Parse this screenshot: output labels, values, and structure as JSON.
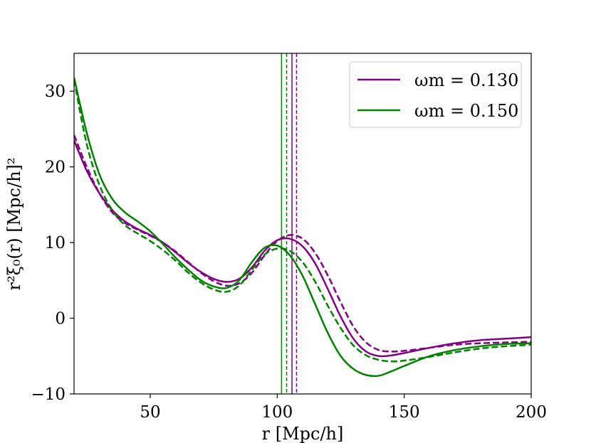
{
  "chart_data": {
    "type": "line",
    "title": "",
    "xlabel": "r [Mpc/h]",
    "ylabel": "r²ξ₀(r) [Mpc/h]²",
    "xlim": [
      20,
      200
    ],
    "ylim": [
      -10,
      35
    ],
    "xticks": [
      50,
      100,
      150,
      200
    ],
    "yticks": [
      -10,
      0,
      10,
      20,
      30
    ],
    "xtick_labels": [
      "50",
      "100",
      "150",
      "200"
    ],
    "ytick_labels": [
      "−10",
      "0",
      "10",
      "20",
      "30"
    ],
    "grid": false,
    "legend_position": "top-right",
    "legend": [
      {
        "label": "ωm = 0.130",
        "color": "#800080"
      },
      {
        "label": "ωm = 0.150",
        "color": "#008000"
      }
    ],
    "series": [
      {
        "name": "ωm = 0.130 (solid)",
        "color": "#800080",
        "dash": "solid",
        "x": [
          20,
          25,
          30,
          35,
          40,
          45,
          50,
          55,
          60,
          65,
          70,
          75,
          80,
          85,
          90,
          95,
          100,
          105,
          110,
          115,
          120,
          125,
          130,
          135,
          140,
          145,
          150,
          160,
          170,
          180,
          190,
          200
        ],
        "y": [
          23.5,
          19.5,
          16.5,
          14.3,
          12.8,
          11.8,
          11.0,
          10.0,
          8.7,
          7.3,
          6.1,
          5.2,
          4.8,
          5.2,
          6.7,
          8.9,
          10.3,
          10.5,
          9.5,
          7.2,
          3.8,
          0.2,
          -2.7,
          -4.4,
          -5.0,
          -4.9,
          -4.6,
          -3.9,
          -3.3,
          -2.9,
          -2.7,
          -2.5
        ]
      },
      {
        "name": "ωm = 0.130 (dashed)",
        "color": "#800080",
        "dash": "dashed",
        "x": [
          20,
          25,
          30,
          35,
          40,
          45,
          50,
          55,
          60,
          65,
          70,
          75,
          80,
          85,
          90,
          95,
          100,
          105,
          110,
          115,
          120,
          125,
          130,
          135,
          140,
          145,
          150,
          160,
          170,
          180,
          190,
          200
        ],
        "y": [
          24.2,
          20.0,
          16.5,
          14.0,
          12.6,
          11.7,
          10.9,
          10.0,
          8.8,
          7.4,
          6.0,
          4.9,
          4.3,
          4.6,
          6.0,
          8.3,
          10.2,
          11.0,
          10.5,
          8.6,
          5.6,
          2.1,
          -1.1,
          -3.2,
          -4.2,
          -4.4,
          -4.3,
          -3.9,
          -3.5,
          -3.3,
          -3.2,
          -3.1
        ]
      },
      {
        "name": "ωm = 0.150 (solid)",
        "color": "#008000",
        "dash": "solid",
        "x": [
          20,
          25,
          30,
          35,
          40,
          45,
          50,
          55,
          60,
          65,
          70,
          75,
          80,
          85,
          90,
          95,
          100,
          105,
          110,
          115,
          120,
          125,
          130,
          135,
          140,
          145,
          150,
          160,
          170,
          180,
          190,
          200
        ],
        "y": [
          31.8,
          24.5,
          19.0,
          15.8,
          14.0,
          12.8,
          11.5,
          9.8,
          8.0,
          6.4,
          5.0,
          4.2,
          4.0,
          5.0,
          7.4,
          9.3,
          9.6,
          8.3,
          5.6,
          1.8,
          -2.0,
          -5.0,
          -6.7,
          -7.5,
          -7.6,
          -7.0,
          -6.3,
          -5.0,
          -4.2,
          -3.7,
          -3.4,
          -3.3
        ]
      },
      {
        "name": "ωm = 0.150 (dashed)",
        "color": "#008000",
        "dash": "dashed",
        "x": [
          20,
          25,
          30,
          35,
          40,
          45,
          50,
          55,
          60,
          65,
          70,
          75,
          80,
          85,
          90,
          95,
          100,
          105,
          110,
          115,
          120,
          125,
          130,
          135,
          140,
          145,
          150,
          160,
          170,
          180,
          190,
          200
        ],
        "y": [
          31.5,
          23.0,
          17.6,
          14.3,
          12.3,
          11.2,
          10.2,
          9.0,
          7.6,
          6.0,
          4.7,
          3.8,
          3.5,
          4.3,
          6.4,
          8.4,
          9.2,
          8.9,
          7.4,
          4.8,
          1.6,
          -1.3,
          -3.6,
          -4.9,
          -5.5,
          -5.7,
          -5.6,
          -5.1,
          -4.5,
          -4.0,
          -3.7,
          -3.5
        ]
      }
    ],
    "vlines": [
      {
        "x": 101.7,
        "color": "#008000",
        "dash": "solid"
      },
      {
        "x": 103.7,
        "color": "#008000",
        "dash": "dashed"
      },
      {
        "x": 105.8,
        "color": "#800080",
        "dash": "solid"
      },
      {
        "x": 107.6,
        "color": "#800080",
        "dash": "dashed"
      }
    ]
  }
}
